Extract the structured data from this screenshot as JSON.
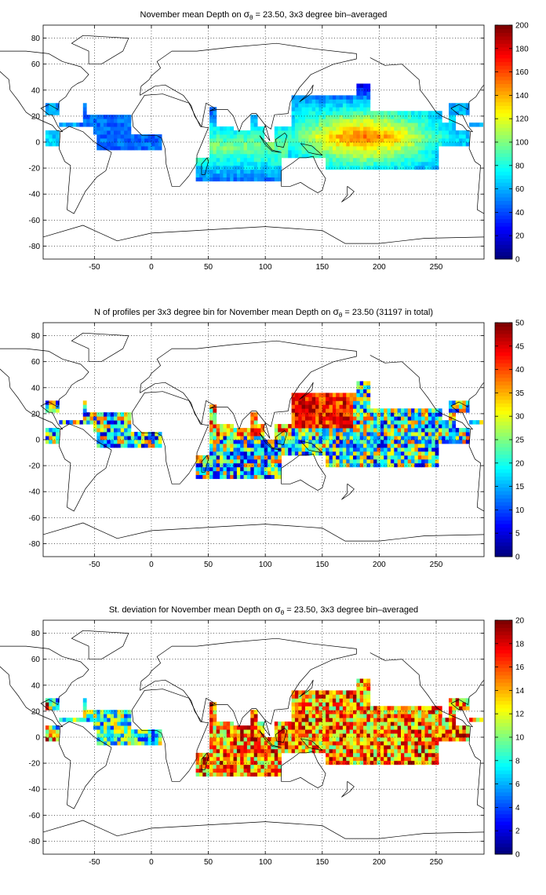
{
  "panels": [
    {
      "title_pre": "November mean Depth on ",
      "title_post": " = 23.50, 3x3 degree bin–averaged",
      "colormap": "jet",
      "clim": [
        0,
        200
      ],
      "cbar_ticks": [
        "0",
        "20",
        "40",
        "60",
        "80",
        "100",
        "120",
        "140",
        "160",
        "180",
        "200"
      ],
      "pattern": "depth"
    },
    {
      "title_pre": "N of profiles per 3x3 degree bin for November mean Depth on ",
      "title_post": " = 23.50 (31197 in total)",
      "colormap": "jet",
      "clim": [
        0,
        50
      ],
      "cbar_ticks": [
        "0",
        "5",
        "10",
        "15",
        "20",
        "25",
        "30",
        "35",
        "40",
        "45",
        "50"
      ],
      "pattern": "count"
    },
    {
      "title_pre": "St. deviation for November mean Depth on ",
      "title_post": " = 23.50, 3x3 degree bin–averaged",
      "colormap": "jet",
      "clim": [
        0,
        20
      ],
      "cbar_ticks": [
        "0",
        "2",
        "4",
        "6",
        "8",
        "10",
        "12",
        "14",
        "16",
        "18",
        "20"
      ],
      "pattern": "std"
    }
  ],
  "sigma_symbol": "σ",
  "sigma_subscript": "θ",
  "x_ticks": [
    "-50",
    "0",
    "50",
    "100",
    "150",
    "200",
    "250"
  ],
  "y_ticks": [
    "-80",
    "-60",
    "-40",
    "-20",
    "0",
    "20",
    "40",
    "60",
    "80"
  ],
  "x_range": [
    -95,
    292
  ],
  "y_range": [
    -90,
    90
  ],
  "grid": true
}
